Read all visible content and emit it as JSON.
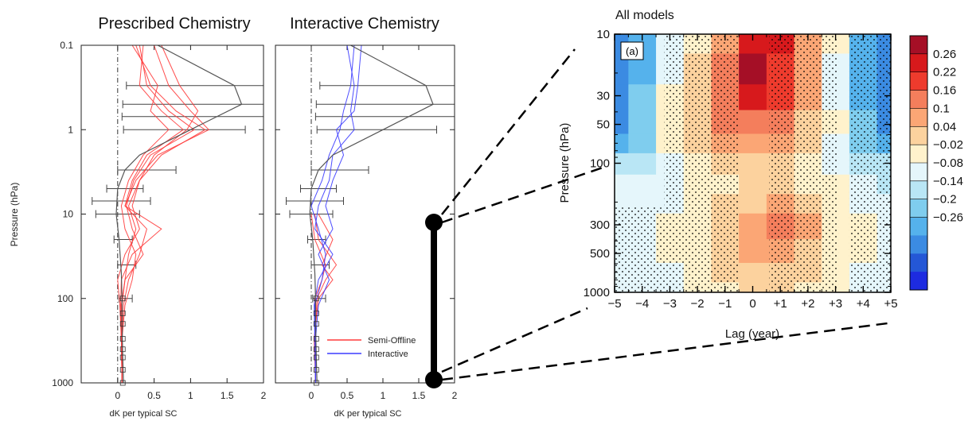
{
  "chart_data": [
    {
      "type": "line",
      "title": "Prescribed Chemistry",
      "xlabel": "dK per typical SC",
      "ylabel": "Pressure (hPa)",
      "xlim": [
        -0.5,
        2
      ],
      "ylim": [
        1000,
        0.1
      ],
      "y_scale": "log",
      "x_ticks": [
        "0",
        "0.5",
        "1",
        "1.5",
        "2"
      ],
      "y_ticks": [
        "0.1",
        "1",
        "10",
        "100",
        "1000"
      ],
      "reference_line_x": 0,
      "mean_profile": {
        "pressure": [
          0.1,
          0.3,
          0.5,
          1,
          2,
          3,
          5,
          10,
          20,
          50,
          100,
          200,
          500,
          1000
        ],
        "x": [
          0.55,
          1.6,
          1.7,
          1.0,
          0.3,
          0.1,
          0.0,
          -0.02,
          0.02,
          0.05,
          0.06,
          0.06,
          0.07,
          0.08
        ]
      },
      "error_bars": [
        {
          "pressure": 0.3,
          "low": 0.12,
          "high": 2.0
        },
        {
          "pressure": 0.5,
          "low": 0.07,
          "high": 2.0
        },
        {
          "pressure": 0.7,
          "low": 0.06,
          "high": 2.0
        },
        {
          "pressure": 1.0,
          "low": 0.08,
          "high": 1.75
        },
        {
          "pressure": 3.0,
          "low": 0.0,
          "high": 0.8
        },
        {
          "pressure": 5.0,
          "low": -0.15,
          "high": 0.35
        },
        {
          "pressure": 7.0,
          "low": -0.35,
          "high": 0.45
        },
        {
          "pressure": 10.0,
          "low": -0.3,
          "high": 0.3
        },
        {
          "pressure": 20.0,
          "low": -0.05,
          "high": 0.2
        },
        {
          "pressure": 40.0,
          "low": 0.0,
          "high": 0.25
        },
        {
          "pressure": 100.0,
          "low": 0.02,
          "high": 0.2
        }
      ],
      "series": [
        {
          "name": "Semi-Offline",
          "color": "#ff3b3b",
          "members": [
            {
              "pressure": [
                0.1,
                0.3,
                0.6,
                1,
                2,
                4,
                8,
                15,
                30,
                60,
                120,
                300,
                1000
              ],
              "x": [
                0.25,
                0.45,
                0.8,
                1.2,
                0.6,
                0.3,
                0.15,
                0.25,
                0.15,
                0.1,
                0.05,
                0.05,
                0.06
              ]
            },
            {
              "pressure": [
                0.1,
                0.3,
                0.6,
                1,
                2,
                4,
                8,
                15,
                30,
                60,
                120,
                300,
                1000
              ],
              "x": [
                0.35,
                0.3,
                0.6,
                0.9,
                0.4,
                0.2,
                0.1,
                0.4,
                0.3,
                0.15,
                0.08,
                0.06,
                0.06
              ]
            },
            {
              "pressure": [
                0.1,
                0.3,
                0.6,
                1,
                2,
                4,
                8,
                15,
                30,
                60,
                120,
                300,
                1000
              ],
              "x": [
                0.5,
                0.7,
                1.0,
                1.25,
                0.55,
                0.25,
                0.1,
                0.6,
                0.2,
                0.05,
                0.04,
                0.05,
                0.06
              ]
            },
            {
              "pressure": [
                0.1,
                0.3,
                0.6,
                1,
                2,
                4,
                8,
                15,
                30,
                60,
                120,
                300,
                1000
              ],
              "x": [
                0.2,
                0.55,
                0.45,
                0.7,
                0.35,
                0.15,
                0.05,
                0.1,
                0.25,
                0.2,
                0.1,
                0.06,
                0.06
              ]
            },
            {
              "pressure": [
                0.1,
                0.3,
                0.6,
                1,
                2,
                4,
                8,
                15,
                30,
                60,
                120,
                300,
                1000
              ],
              "x": [
                0.6,
                0.85,
                1.1,
                0.95,
                0.5,
                0.3,
                0.2,
                0.3,
                0.1,
                0.0,
                0.03,
                0.05,
                0.06
              ]
            },
            {
              "pressure": [
                0.1,
                0.3,
                0.6,
                1,
                2,
                4,
                8,
                15,
                30,
                60,
                120,
                300,
                1000
              ],
              "x": [
                0.3,
                0.4,
                0.7,
                1.05,
                0.45,
                0.22,
                0.12,
                0.2,
                0.35,
                0.1,
                0.06,
                0.05,
                0.06
              ]
            }
          ]
        },
        {
          "name": "Interactive",
          "color": "#3b3bff"
        }
      ]
    },
    {
      "type": "line",
      "title": "Interactive Chemistry",
      "xlabel": "dK per typical SC",
      "xlim": [
        -0.5,
        2
      ],
      "ylim": [
        1000,
        0.1
      ],
      "y_scale": "log",
      "x_ticks": [
        "0",
        "0.5",
        "1",
        "1.5",
        "2"
      ],
      "reference_line_x": 0,
      "mean_profile": {
        "pressure": [
          0.1,
          0.3,
          0.5,
          1,
          2,
          3,
          5,
          10,
          20,
          50,
          100,
          200,
          500,
          1000
        ],
        "x": [
          0.55,
          1.6,
          1.7,
          1.0,
          0.3,
          0.1,
          0.0,
          -0.02,
          0.02,
          0.05,
          0.06,
          0.06,
          0.07,
          0.08
        ]
      },
      "error_bars": [
        {
          "pressure": 0.3,
          "low": 0.12,
          "high": 2.0
        },
        {
          "pressure": 0.5,
          "low": 0.07,
          "high": 2.0
        },
        {
          "pressure": 0.7,
          "low": 0.06,
          "high": 2.0
        },
        {
          "pressure": 1.0,
          "low": 0.08,
          "high": 1.75
        },
        {
          "pressure": 3.0,
          "low": 0.0,
          "high": 0.8
        },
        {
          "pressure": 5.0,
          "low": -0.15,
          "high": 0.35
        },
        {
          "pressure": 7.0,
          "low": -0.35,
          "high": 0.45
        },
        {
          "pressure": 10.0,
          "low": -0.3,
          "high": 0.3
        },
        {
          "pressure": 20.0,
          "low": -0.05,
          "high": 0.2
        },
        {
          "pressure": 40.0,
          "low": 0.0,
          "high": 0.25
        },
        {
          "pressure": 100.0,
          "low": 0.02,
          "high": 0.2
        }
      ],
      "series": [
        {
          "name": "Semi-Offline",
          "color": "#ff3b3b",
          "members": [
            {
              "pressure": [
                10,
                20,
                40,
                60,
                100,
                300,
                1000
              ],
              "x": [
                0.0,
                0.05,
                0.2,
                0.15,
                0.05,
                0.05,
                0.06
              ]
            },
            {
              "pressure": [
                10,
                20,
                40,
                60,
                100,
                300,
                1000
              ],
              "x": [
                0.1,
                0.3,
                0.15,
                0.3,
                0.1,
                0.04,
                0.06
              ]
            },
            {
              "pressure": [
                10,
                20,
                40,
                60,
                100,
                300,
                1000
              ],
              "x": [
                0.05,
                0.1,
                0.35,
                0.2,
                0.08,
                0.05,
                0.06
              ]
            }
          ]
        },
        {
          "name": "Interactive",
          "color": "#3b3bff",
          "members": [
            {
              "pressure": [
                0.1,
                0.3,
                0.6,
                1,
                2,
                4,
                8,
                15,
                30,
                60,
                120,
                300,
                1000
              ],
              "x": [
                0.6,
                0.55,
                0.45,
                0.4,
                0.25,
                0.15,
                0.0,
                0.1,
                0.2,
                0.15,
                0.05,
                0.05,
                0.06
              ]
            },
            {
              "pressure": [
                0.1,
                0.3,
                0.6,
                1,
                2,
                4,
                8,
                15,
                30,
                60,
                120,
                300,
                1000
              ],
              "x": [
                0.7,
                0.65,
                0.6,
                0.35,
                0.45,
                0.3,
                0.2,
                0.3,
                0.1,
                0.25,
                0.1,
                0.06,
                0.06
              ]
            },
            {
              "pressure": [
                0.1,
                0.3,
                0.6,
                1,
                2,
                4,
                8,
                15,
                30,
                60,
                120,
                300,
                1000
              ],
              "x": [
                0.5,
                0.6,
                0.55,
                0.6,
                0.3,
                0.25,
                0.1,
                0.05,
                0.3,
                0.1,
                0.04,
                0.05,
                0.06
              ]
            }
          ]
        }
      ]
    },
    {
      "type": "heatmap",
      "title": "All models",
      "panel_label": "(a)",
      "xlabel": "Lag (year)",
      "ylabel": "Pressure (hPa)",
      "x_ticks": [
        "−5",
        "−4",
        "−3",
        "−2",
        "−1",
        "0",
        "+1",
        "+2",
        "+3",
        "+4",
        "+5"
      ],
      "y_ticks": [
        "10",
        "30",
        "50",
        "100",
        "300",
        "500",
        "1000"
      ],
      "x_values": [
        -5,
        -4,
        -3,
        -2,
        -1,
        0,
        1,
        2,
        3,
        4,
        5
      ],
      "y_values": [
        10,
        20,
        30,
        50,
        70,
        100,
        150,
        200,
        300,
        500,
        700,
        1000
      ],
      "xlim": [
        -5,
        5
      ],
      "ylim": [
        1000,
        10
      ],
      "y_scale": "log",
      "values": [
        [
          -0.2,
          -0.16,
          -0.02,
          0.04,
          0.12,
          0.24,
          0.22,
          0.12,
          0.0,
          -0.14,
          -0.2
        ],
        [
          -0.2,
          -0.14,
          -0.02,
          0.06,
          0.16,
          0.26,
          0.2,
          0.12,
          -0.02,
          -0.16,
          -0.2
        ],
        [
          -0.18,
          -0.12,
          0.0,
          0.06,
          0.16,
          0.24,
          0.18,
          0.1,
          -0.02,
          -0.14,
          -0.2
        ],
        [
          -0.2,
          -0.12,
          0.0,
          0.08,
          0.14,
          0.16,
          0.14,
          0.08,
          0.0,
          -0.12,
          -0.18
        ],
        [
          -0.14,
          -0.1,
          0.0,
          0.06,
          0.1,
          0.1,
          0.1,
          0.06,
          -0.02,
          -0.1,
          -0.14
        ],
        [
          -0.08,
          -0.08,
          -0.02,
          0.02,
          0.06,
          0.06,
          0.06,
          0.04,
          -0.02,
          -0.06,
          -0.08
        ],
        [
          -0.04,
          -0.04,
          -0.02,
          0.0,
          0.04,
          0.06,
          0.06,
          0.04,
          0.0,
          -0.04,
          -0.06
        ],
        [
          -0.04,
          -0.04,
          -0.02,
          0.02,
          0.06,
          0.08,
          0.1,
          0.08,
          0.02,
          -0.02,
          -0.04
        ],
        [
          -0.04,
          -0.02,
          0.0,
          0.04,
          0.08,
          0.12,
          0.14,
          0.12,
          0.04,
          0.0,
          -0.02
        ],
        [
          -0.04,
          -0.02,
          0.0,
          0.04,
          0.08,
          0.1,
          0.1,
          0.08,
          0.04,
          0.0,
          -0.02
        ],
        [
          -0.04,
          -0.04,
          -0.02,
          0.02,
          0.06,
          0.08,
          0.08,
          0.06,
          0.02,
          -0.02,
          -0.04
        ],
        [
          -0.04,
          -0.04,
          -0.02,
          0.02,
          0.04,
          0.06,
          0.06,
          0.04,
          0.02,
          -0.02,
          -0.04
        ]
      ],
      "colorbar": {
        "labels": [
          "0.26",
          "0.22",
          "0.16",
          "0.1",
          "0.04",
          "−0.02",
          "−0.08",
          "−0.14",
          "−0.2",
          "−0.26"
        ],
        "colors": [
          "#a50f26",
          "#d7191c",
          "#ee3b2d",
          "#f47e5c",
          "#fba675",
          "#fcd29e",
          "#fff2cc",
          "#e5f6fb",
          "#b9e6f5",
          "#7fcdee",
          "#55b2ec",
          "#3b8be2",
          "#2457d6",
          "#1d2be0"
        ]
      }
    }
  ],
  "annotations": {
    "connector_style": "dashed"
  }
}
